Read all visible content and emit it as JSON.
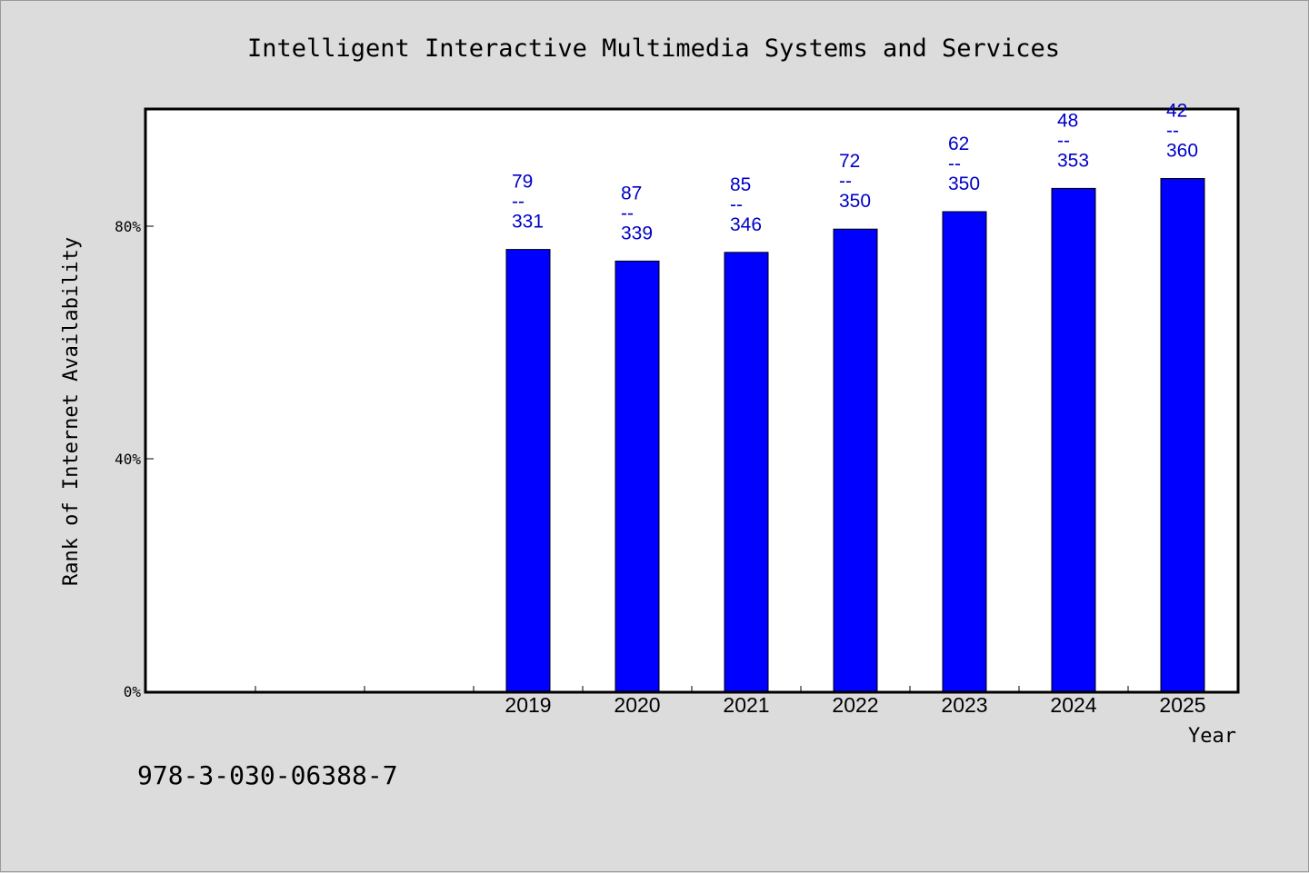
{
  "chart_data": {
    "type": "bar",
    "title": "Intelligent Interactive Multimedia Systems and Services",
    "xlabel": "Year",
    "ylabel": "Rank of Internet Availability",
    "categories": [
      "",
      "",
      "",
      "2019",
      "2020",
      "2021",
      "2022",
      "2023",
      "2024",
      "2025"
    ],
    "values": [
      null,
      null,
      null,
      76,
      74,
      75.5,
      79.5,
      82.5,
      86.5,
      88.2
    ],
    "data_labels": [
      null,
      null,
      null,
      {
        "top": "79",
        "bottom": "331"
      },
      {
        "top": "87",
        "bottom": "339"
      },
      {
        "top": "85",
        "bottom": "346"
      },
      {
        "top": "72",
        "bottom": "350"
      },
      {
        "top": "62",
        "bottom": "350"
      },
      {
        "top": "48",
        "bottom": "353"
      },
      {
        "top": "42",
        "bottom": "360"
      }
    ],
    "label_separator": "--",
    "ylim": [
      0,
      100
    ],
    "yticks": [
      {
        "value": 0,
        "label": "0%"
      },
      {
        "value": 40,
        "label": "40%"
      },
      {
        "value": 80,
        "label": "80%"
      }
    ],
    "bar_color": "#0000ff",
    "label_color": "#0000c8",
    "grid": false
  },
  "footer_note": "978-3-030-06388-7"
}
